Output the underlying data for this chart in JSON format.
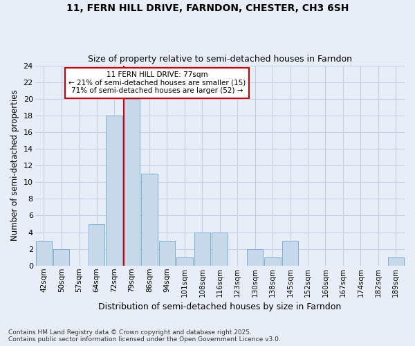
{
  "title1": "11, FERN HILL DRIVE, FARNDON, CHESTER, CH3 6SH",
  "title2": "Size of property relative to semi-detached houses in Farndon",
  "xlabel": "Distribution of semi-detached houses by size in Farndon",
  "ylabel": "Number of semi-detached properties",
  "categories": [
    "42sqm",
    "50sqm",
    "57sqm",
    "64sqm",
    "72sqm",
    "79sqm",
    "86sqm",
    "94sqm",
    "101sqm",
    "108sqm",
    "116sqm",
    "123sqm",
    "130sqm",
    "138sqm",
    "145sqm",
    "152sqm",
    "160sqm",
    "167sqm",
    "174sqm",
    "182sqm",
    "189sqm"
  ],
  "values": [
    3,
    2,
    0,
    5,
    18,
    20,
    11,
    3,
    1,
    4,
    4,
    0,
    2,
    1,
    3,
    0,
    0,
    0,
    0,
    0,
    1
  ],
  "bar_color": "#c9d9ec",
  "bar_edgecolor": "#7bafd4",
  "property_index": 5,
  "property_label": "11 FERN HILL DRIVE: 77sqm",
  "pct_smaller": "21%",
  "pct_smaller_n": 15,
  "pct_larger": "71%",
  "pct_larger_n": 52,
  "vline_color": "#cc0000",
  "annotation_box_edgecolor": "#cc0000",
  "background_color": "#e8eef7",
  "plot_bg_color": "#e8eef7",
  "grid_color": "#c5d0e0",
  "footer1": "Contains HM Land Registry data © Crown copyright and database right 2025.",
  "footer2": "Contains public sector information licensed under the Open Government Licence v3.0.",
  "ylim": [
    0,
    24
  ],
  "yticks": [
    0,
    2,
    4,
    6,
    8,
    10,
    12,
    14,
    16,
    18,
    20,
    22,
    24
  ]
}
